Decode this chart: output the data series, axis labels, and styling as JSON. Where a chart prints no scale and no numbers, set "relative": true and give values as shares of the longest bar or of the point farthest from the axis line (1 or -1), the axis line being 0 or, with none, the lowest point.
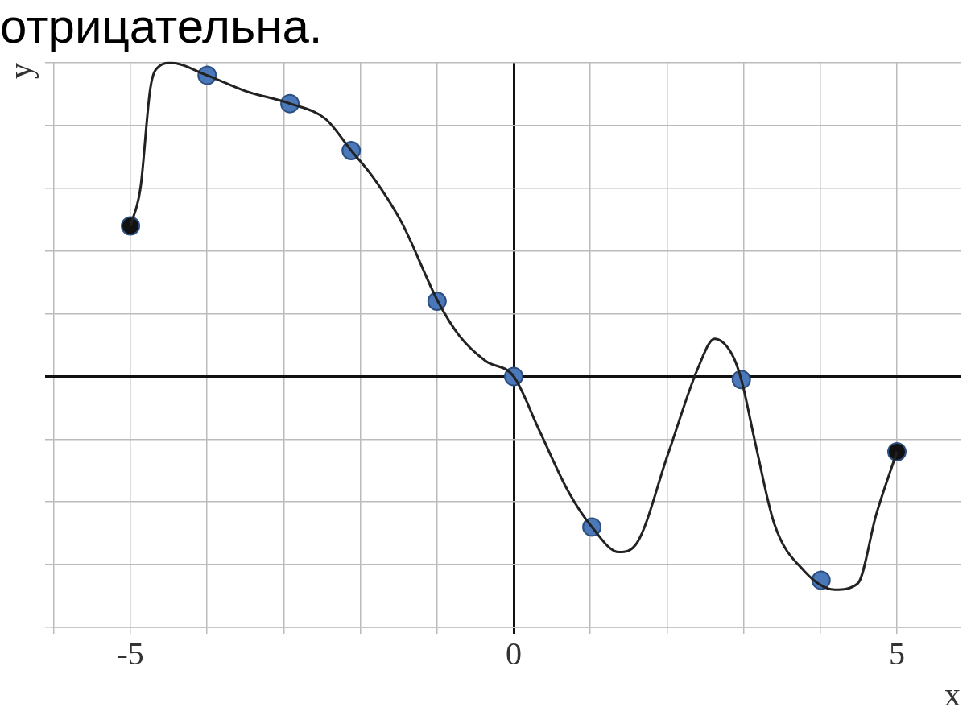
{
  "chart_data": {
    "type": "line",
    "title": "отрицательна.",
    "xlabel": "x",
    "ylabel": "y",
    "relative": true,
    "grid": true,
    "legend": false,
    "xlim": [
      -6.03,
      5.83
    ],
    "xticks": [
      {
        "value": -6,
        "label": null
      },
      -5,
      {
        "value": -4,
        "label": null
      },
      {
        "value": -3,
        "label": null
      },
      {
        "value": -2,
        "label": null
      },
      {
        "value": -1,
        "label": null
      },
      0,
      {
        "value": 1,
        "label": null
      },
      {
        "value": 2,
        "label": null
      },
      {
        "value": 3,
        "label": null
      },
      {
        "value": 4,
        "label": null
      },
      5
    ],
    "series": [
      {
        "type": "line",
        "color": "#222222",
        "marker": "none",
        "x": [
          -5,
          -4.87,
          -4.74,
          -4.62,
          -4.48,
          -4.0,
          -3.5,
          -2.92,
          -2.45,
          -2.12,
          -1.85,
          -1.46,
          -0.99,
          -0.71,
          -0.37,
          0,
          0.33,
          0.72,
          1.02,
          1.37,
          1.61,
          2.01,
          2.41,
          2.62,
          2.85,
          2.97,
          3.15,
          3.4,
          3.79,
          4.19,
          4.49,
          4.73,
          5
        ],
        "values": [
          0.48,
          0.6,
          0.92,
          0.99,
          1,
          0.96,
          0.91,
          0.87,
          0.82,
          0.72,
          0.64,
          0.49,
          0.24,
          0.13,
          0.05,
          0,
          -0.17,
          -0.37,
          -0.48,
          -0.56,
          -0.53,
          -0.25,
          0.03,
          0.12,
          0.07,
          -0.01,
          -0.21,
          -0.47,
          -0.62,
          -0.68,
          -0.66,
          -0.44,
          -0.24
        ]
      },
      {
        "type": "scatter",
        "color": "#4a78b8",
        "marker": "circle",
        "x": [
          -4,
          -2.92,
          -2.12,
          -1,
          0,
          1.02,
          2.97,
          4.01
        ],
        "values": [
          0.96,
          0.87,
          0.72,
          0.24,
          0,
          -0.48,
          -0.01,
          -0.65
        ]
      },
      {
        "type": "scatter",
        "color": "#111111",
        "marker": "circle",
        "x": [
          -5,
          5
        ],
        "values": [
          0.48,
          -0.24
        ]
      }
    ]
  }
}
